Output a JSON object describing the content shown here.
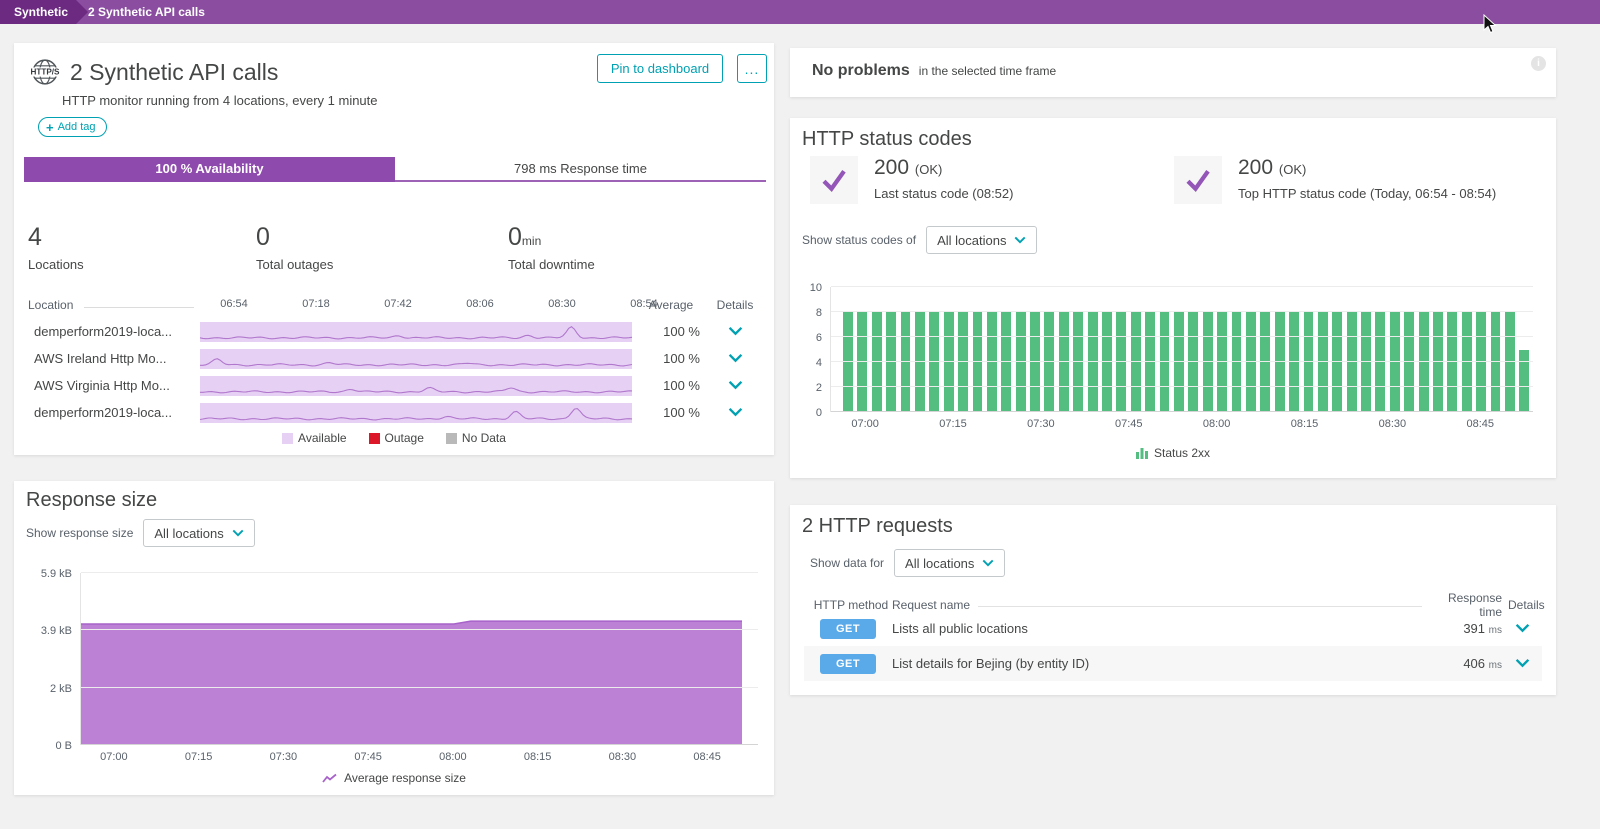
{
  "breadcrumb": {
    "root": "Synthetic",
    "current": "2 Synthetic API calls"
  },
  "colors": {
    "accent_teal": "#00a1b2",
    "topbar_purple": "#8a4da0",
    "topbar_dark_purple": "#6c2b81",
    "tab_purple": "#8f4aad",
    "check_purple": "#9355b7",
    "band_purple": "#e6d1f5",
    "spark_line_purple": "#b177cc",
    "area_purple": "#b87ad3",
    "bar_green": "#54bd80",
    "get_blue": "#5aa9e8",
    "outage_red": "#dc172a",
    "nodata_gray": "#b9b9b9",
    "text_dark": "#454646",
    "text_gray": "#59616a"
  },
  "monitor": {
    "icon_label": "HTTP/S",
    "title": "2 Synthetic API calls",
    "subtitle": "HTTP monitor running from 4 locations, every 1 minute",
    "add_tag_label": "Add tag",
    "pin_label": "Pin to dashboard",
    "more_label": "..."
  },
  "tabs": [
    {
      "label": "100 % Availability",
      "selected": true
    },
    {
      "label": "798 ms Response time",
      "selected": false
    }
  ],
  "stats": [
    {
      "value": "4",
      "unit": "",
      "label": "Locations"
    },
    {
      "value": "0",
      "unit": "",
      "label": "Total outages"
    },
    {
      "value": "0",
      "unit": "min",
      "label": "Total downtime"
    }
  ],
  "availability_table": {
    "headers": {
      "location": "Location",
      "average": "Average",
      "details": "Details"
    },
    "time_ticks": [
      "06:54",
      "07:18",
      "07:42",
      "08:06",
      "08:30",
      "08:54"
    ],
    "rows": [
      {
        "name": "demperform2019-loca...",
        "average": "100 %",
        "spikes": [
          [
            0.46,
            0.18
          ],
          [
            0.76,
            0.2
          ],
          [
            0.86,
            0.8
          ]
        ]
      },
      {
        "name": "AWS Ireland Http Mo...",
        "average": "100 %",
        "spikes": [
          [
            0.04,
            0.4
          ],
          [
            0.3,
            0.15
          ],
          [
            0.62,
            0.12
          ]
        ]
      },
      {
        "name": "AWS Virginia Http Mo...",
        "average": "100 %",
        "spikes": [
          [
            0.35,
            0.22
          ],
          [
            0.53,
            0.28
          ],
          [
            0.72,
            0.32
          ]
        ]
      },
      {
        "name": "demperform2019-loca...",
        "average": "100 %",
        "spikes": [
          [
            0.57,
            0.2
          ],
          [
            0.73,
            0.55
          ],
          [
            0.87,
            0.85
          ]
        ]
      }
    ],
    "legend": [
      {
        "label": "Available",
        "color": "#e6d1f5"
      },
      {
        "label": "Outage",
        "color": "#dc172a"
      },
      {
        "label": "No Data",
        "color": "#b9b9b9"
      }
    ]
  },
  "response_size": {
    "title": "Response size",
    "filter_label": "Show response size",
    "filter_value": "All locations"
  },
  "problems": {
    "title": "No problems",
    "subtitle": "in the selected time frame"
  },
  "status_codes": {
    "title": "HTTP status codes",
    "cards": [
      {
        "code": "200",
        "suffix": "(OK)",
        "label": "Last status code (08:52)"
      },
      {
        "code": "200",
        "suffix": "(OK)",
        "label": "Top HTTP status code (Today, 06:54 - 08:54)"
      }
    ],
    "filter_label": "Show status codes of",
    "filter_value": "All locations"
  },
  "http_requests": {
    "title": "2 HTTP requests",
    "filter_label": "Show data for",
    "filter_value": "All locations",
    "headers": [
      "HTTP method",
      "Request name",
      "Response time",
      "Details"
    ],
    "rows": [
      {
        "method": "GET",
        "name": "Lists all public locations",
        "time": "391",
        "unit": "ms"
      },
      {
        "method": "GET",
        "name": "List details for Bejing (by entity ID)",
        "time": "406",
        "unit": "ms"
      }
    ]
  },
  "chart_data": [
    {
      "id": "status_codes_over_time",
      "type": "bar",
      "title": "HTTP status codes over time",
      "x_range": [
        "06:54",
        "08:54"
      ],
      "x_ticks": [
        "07:00",
        "07:15",
        "07:30",
        "07:45",
        "08:00",
        "08:15",
        "08:30",
        "08:45"
      ],
      "ylim": [
        0,
        10
      ],
      "y_ticks": [
        0,
        2,
        4,
        6,
        8,
        10
      ],
      "series": [
        {
          "name": "Status 2xx",
          "color": "#54bd80",
          "values": [
            8,
            8,
            8,
            8,
            8,
            8,
            8,
            8,
            8,
            8,
            8,
            8,
            8,
            8,
            8,
            8,
            8,
            8,
            8,
            8,
            8,
            8,
            8,
            8,
            8,
            8,
            8,
            8,
            8,
            8,
            8,
            8,
            8,
            8,
            8,
            8,
            8,
            8,
            8,
            8,
            8,
            8,
            8,
            8,
            8,
            8,
            8,
            5
          ]
        }
      ]
    },
    {
      "id": "response_size",
      "type": "area",
      "title": "Response size over time",
      "x_range": [
        "06:54",
        "08:54"
      ],
      "x_ticks": [
        "07:00",
        "07:15",
        "07:30",
        "07:45",
        "08:00",
        "08:15",
        "08:30",
        "08:45"
      ],
      "y_ticks": [
        "0 B",
        "2 kB",
        "3.9 kB",
        "5.9 kB"
      ],
      "ylim_kb": [
        0,
        5.9
      ],
      "series": [
        {
          "name": "Average response size",
          "color": "#b87ad3",
          "line_color": "#a763c9",
          "points_kb": [
            [
              0,
              4.15
            ],
            [
              0.55,
              4.15
            ],
            [
              0.575,
              4.25
            ],
            [
              0.975,
              4.25
            ]
          ]
        }
      ]
    }
  ]
}
